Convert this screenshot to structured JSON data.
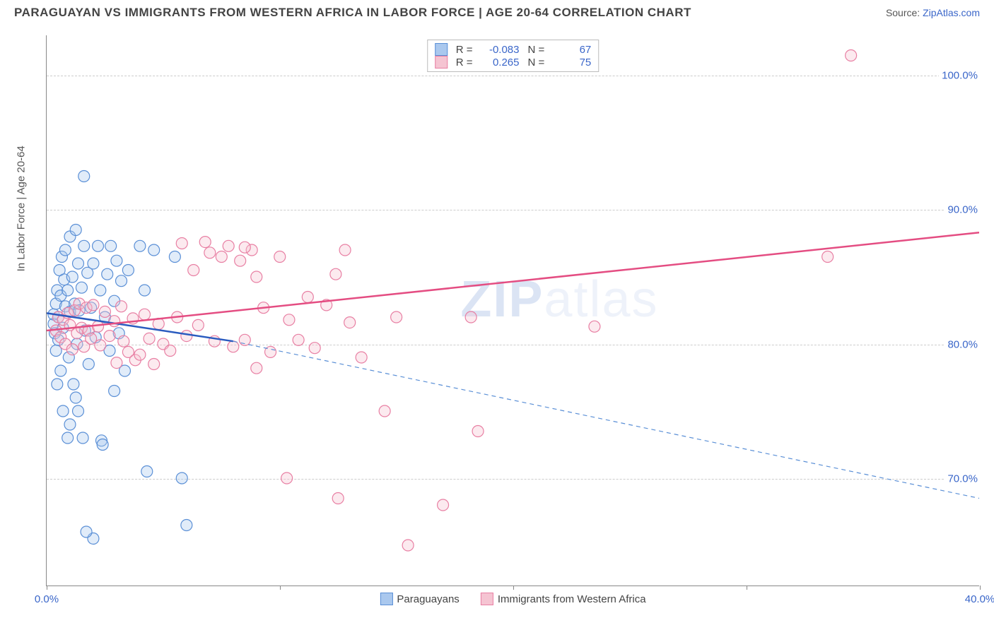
{
  "title": "PARAGUAYAN VS IMMIGRANTS FROM WESTERN AFRICA IN LABOR FORCE | AGE 20-64 CORRELATION CHART",
  "source_prefix": "Source: ",
  "source_name": "ZipAtlas.com",
  "y_axis_label": "In Labor Force | Age 20-64",
  "watermark_a": "ZIP",
  "watermark_b": "atlas",
  "chart": {
    "type": "scatter",
    "xlim": [
      0,
      40
    ],
    "ylim": [
      62,
      103
    ],
    "x_ticks": [
      0,
      10,
      20,
      30,
      40
    ],
    "x_tick_labels": [
      "0.0%",
      "",
      "",
      "",
      "40.0%"
    ],
    "y_ticks": [
      70,
      80,
      90,
      100
    ],
    "y_tick_labels": [
      "70.0%",
      "80.0%",
      "90.0%",
      "100.0%"
    ],
    "grid_color": "#cccccc",
    "background": "#ffffff",
    "marker_radius": 8,
    "series": [
      {
        "name": "Paraguayans",
        "key": "blue",
        "color_fill": "#aac8ee",
        "color_stroke": "#5a8fd6",
        "R": "-0.083",
        "N": "67",
        "line_solid": {
          "x1": 0,
          "y1": 82.3,
          "x2": 8,
          "y2": 80.2,
          "color": "#2a5bbf",
          "width": 2.5
        },
        "line_dash": {
          "x1": 8,
          "y1": 80.2,
          "x2": 40,
          "y2": 68.5,
          "color": "#5a8fd6",
          "width": 1.2
        },
        "points": [
          [
            0.3,
            81.5
          ],
          [
            0.3,
            82.2
          ],
          [
            0.35,
            80.8
          ],
          [
            0.4,
            83
          ],
          [
            0.4,
            79.5
          ],
          [
            0.45,
            84
          ],
          [
            0.5,
            82
          ],
          [
            0.5,
            80.3
          ],
          [
            0.55,
            85.5
          ],
          [
            0.6,
            83.6
          ],
          [
            0.6,
            78
          ],
          [
            0.65,
            86.5
          ],
          [
            0.7,
            81.2
          ],
          [
            0.75,
            84.8
          ],
          [
            0.8,
            82.8
          ],
          [
            0.8,
            87
          ],
          [
            0.9,
            84
          ],
          [
            0.95,
            79
          ],
          [
            1.0,
            88
          ],
          [
            1.0,
            82.4
          ],
          [
            1.1,
            85
          ],
          [
            1.15,
            77
          ],
          [
            1.2,
            83
          ],
          [
            1.25,
            88.5
          ],
          [
            1.3,
            80
          ],
          [
            1.35,
            86
          ],
          [
            1.4,
            82.5
          ],
          [
            1.5,
            84.2
          ],
          [
            1.55,
            73
          ],
          [
            1.6,
            87.3
          ],
          [
            1.65,
            81
          ],
          [
            1.75,
            85.3
          ],
          [
            1.8,
            78.5
          ],
          [
            1.9,
            82.7
          ],
          [
            2.0,
            86
          ],
          [
            2.1,
            80.5
          ],
          [
            2.2,
            87.3
          ],
          [
            2.3,
            84
          ],
          [
            2.35,
            72.8
          ],
          [
            2.4,
            72.5
          ],
          [
            2.5,
            82
          ],
          [
            2.6,
            85.2
          ],
          [
            2.7,
            79.5
          ],
          [
            2.75,
            87.3
          ],
          [
            2.9,
            83.2
          ],
          [
            3.0,
            86.2
          ],
          [
            3.1,
            80.8
          ],
          [
            3.2,
            84.7
          ],
          [
            3.35,
            78
          ],
          [
            3.5,
            85.5
          ],
          [
            4.0,
            87.3
          ],
          [
            4.3,
            70.5
          ],
          [
            1.6,
            92.5
          ],
          [
            2.0,
            65.5
          ],
          [
            1.7,
            66
          ],
          [
            2.9,
            76.5
          ],
          [
            1.25,
            76
          ],
          [
            0.45,
            77
          ],
          [
            5.5,
            86.5
          ],
          [
            5.8,
            70
          ],
          [
            6.0,
            66.5
          ],
          [
            4.2,
            84
          ],
          [
            4.6,
            87
          ],
          [
            0.7,
            75
          ],
          [
            0.9,
            73
          ],
          [
            1.0,
            74
          ],
          [
            1.35,
            75
          ]
        ]
      },
      {
        "name": "Immigrants from Western Africa",
        "key": "pink",
        "color_fill": "#f5c4d2",
        "color_stroke": "#e87fa3",
        "R": "0.265",
        "N": "75",
        "line_solid": {
          "x1": 0,
          "y1": 81.0,
          "x2": 40,
          "y2": 88.3,
          "color": "#e44d82",
          "width": 2.5
        },
        "line_dash": null,
        "points": [
          [
            0.4,
            81
          ],
          [
            0.5,
            82
          ],
          [
            0.6,
            80.5
          ],
          [
            0.7,
            81.8
          ],
          [
            0.8,
            80
          ],
          [
            0.9,
            82.3
          ],
          [
            1.0,
            81.4
          ],
          [
            1.1,
            79.6
          ],
          [
            1.2,
            82.5
          ],
          [
            1.3,
            80.8
          ],
          [
            1.4,
            83
          ],
          [
            1.5,
            81.2
          ],
          [
            1.6,
            79.8
          ],
          [
            1.7,
            82.7
          ],
          [
            1.8,
            81
          ],
          [
            1.9,
            80.4
          ],
          [
            2.0,
            82.9
          ],
          [
            2.2,
            81.3
          ],
          [
            2.3,
            79.9
          ],
          [
            2.5,
            82.4
          ],
          [
            2.7,
            80.6
          ],
          [
            2.9,
            81.7
          ],
          [
            3.0,
            78.6
          ],
          [
            3.2,
            82.8
          ],
          [
            3.3,
            80.2
          ],
          [
            3.5,
            79.4
          ],
          [
            3.7,
            81.9
          ],
          [
            3.8,
            78.8
          ],
          [
            4.0,
            79.2
          ],
          [
            4.2,
            82.2
          ],
          [
            4.4,
            80.4
          ],
          [
            4.6,
            78.5
          ],
          [
            4.8,
            81.5
          ],
          [
            5.0,
            80
          ],
          [
            5.3,
            79.5
          ],
          [
            5.6,
            82
          ],
          [
            5.8,
            87.5
          ],
          [
            6.0,
            80.6
          ],
          [
            6.3,
            85.5
          ],
          [
            6.5,
            81.4
          ],
          [
            6.8,
            87.6
          ],
          [
            7.0,
            86.8
          ],
          [
            7.2,
            80.2
          ],
          [
            7.5,
            86.5
          ],
          [
            7.8,
            87.3
          ],
          [
            8.0,
            79.8
          ],
          [
            8.3,
            86.2
          ],
          [
            8.5,
            80.3
          ],
          [
            8.8,
            87
          ],
          [
            9.0,
            85
          ],
          [
            9.3,
            82.7
          ],
          [
            9.6,
            79.4
          ],
          [
            10.0,
            86.5
          ],
          [
            10.4,
            81.8
          ],
          [
            10.8,
            80.3
          ],
          [
            11.2,
            83.5
          ],
          [
            11.5,
            79.7
          ],
          [
            12.0,
            82.9
          ],
          [
            12.4,
            85.2
          ],
          [
            12.5,
            68.5
          ],
          [
            13.0,
            81.6
          ],
          [
            13.5,
            79
          ],
          [
            14.5,
            75
          ],
          [
            15.5,
            65
          ],
          [
            18.5,
            73.5
          ],
          [
            18.2,
            82
          ],
          [
            17.0,
            68
          ],
          [
            15.0,
            82
          ],
          [
            23.5,
            81.3
          ],
          [
            8.5,
            87.2
          ],
          [
            12.8,
            87
          ],
          [
            10.3,
            70
          ],
          [
            34.5,
            101.5
          ],
          [
            33.5,
            86.5
          ],
          [
            9.0,
            78.2
          ]
        ]
      }
    ]
  },
  "legend_bottom": [
    {
      "label": "Paraguayans",
      "fill": "#aac8ee",
      "stroke": "#5a8fd6"
    },
    {
      "label": "Immigrants from Western Africa",
      "fill": "#f5c4d2",
      "stroke": "#e87fa3"
    }
  ],
  "legend_labels": {
    "R": "R =",
    "N": "N ="
  }
}
